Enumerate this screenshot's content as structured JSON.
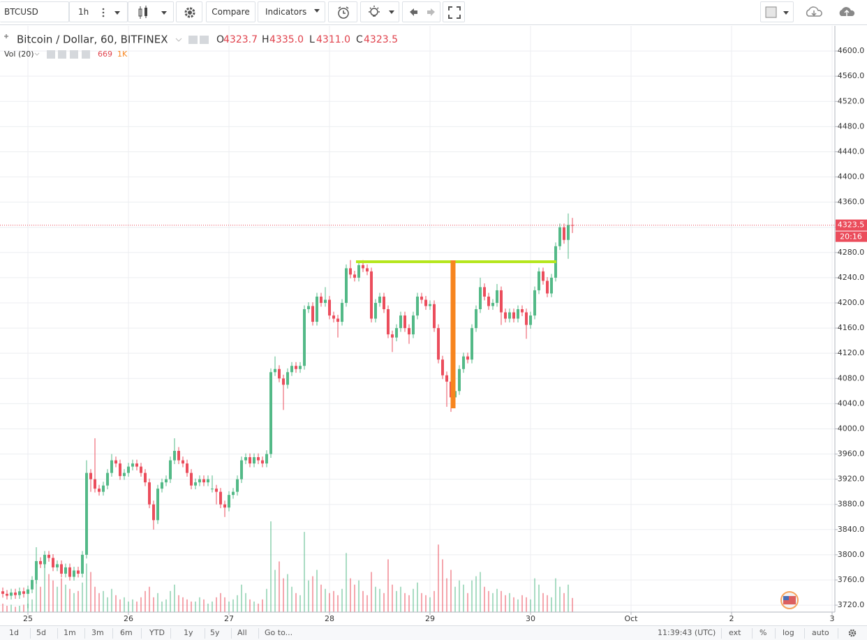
{
  "toolbar": {
    "symbol": "BTCUSD",
    "interval": "1h",
    "compare": "Compare",
    "indicators": "Indicators"
  },
  "legend": {
    "o_key": "O",
    "o": "4323.7",
    "h_key": "H",
    "h": "4335.0",
    "l_key": "L",
    "l": "4311.0",
    "c_key": "C",
    "c": "4323.5",
    "ma": "1K"
  },
  "countdown": "20:16",
  "bottom_bar": {
    "ranges": [
      "1d",
      "5d",
      "1m",
      "3m",
      "6m",
      "YTD",
      "1y",
      "5y",
      "All"
    ],
    "goto": "Go to...",
    "clock": "11:39:43 (UTC)",
    "options": [
      "ext",
      "%",
      "log",
      "auto"
    ]
  },
  "chart_data": {
    "type": "candlestick",
    "up_color": "#53b987",
    "down_color": "#eb4d5c",
    "grid": true,
    "xlim": [
      24.7222,
      33.0278
    ],
    "xticks": [
      25,
      26,
      27,
      28,
      29,
      30,
      {
        "value": 31,
        "label": "Oct"
      },
      {
        "value": 32,
        "label": "2"
      },
      {
        "value": 33,
        "label": "3"
      }
    ],
    "ylim": [
      3709,
      4640
    ],
    "yticks": [
      {
        "value": 3720,
        "label": "3720.0"
      },
      {
        "value": 3760,
        "label": "3760.0"
      },
      {
        "value": 3800,
        "label": "3800.0"
      },
      {
        "value": 3840,
        "label": "3840.0"
      },
      {
        "value": 3880,
        "label": "3880.0"
      },
      {
        "value": 3920,
        "label": "3920.0"
      },
      {
        "value": 3960,
        "label": "3960.0"
      },
      {
        "value": 4000,
        "label": "4000.0"
      },
      {
        "value": 4040,
        "label": "4040.0"
      },
      {
        "value": 4080,
        "label": "4080.0"
      },
      {
        "value": 4120,
        "label": "4120.0"
      },
      {
        "value": 4160,
        "label": "4160.0"
      },
      {
        "value": 4200,
        "label": "4200.0"
      },
      {
        "value": 4240,
        "label": "4240.0"
      },
      {
        "value": 4280,
        "label": "4280.0"
      },
      {
        "value": 4320,
        "label": "4320.0"
      },
      {
        "value": 4360,
        "label": "4360.0"
      },
      {
        "value": 4400,
        "label": "4400.0"
      },
      {
        "value": 4440,
        "label": "4440.0"
      },
      {
        "value": 4480,
        "label": "4480.0"
      },
      {
        "value": 4520,
        "label": "4520.0"
      },
      {
        "value": 4560,
        "label": "4560.0"
      },
      {
        "value": 4600,
        "label": "4600.0"
      }
    ],
    "x": [
      24.75,
      24.7917,
      24.8333,
      24.875,
      24.9167,
      24.9583,
      25,
      25.0417,
      25.0833,
      25.125,
      25.1667,
      25.2083,
      25.25,
      25.2917,
      25.3333,
      25.375,
      25.4167,
      25.4583,
      25.5,
      25.5417,
      25.5833,
      25.625,
      25.6667,
      25.7083,
      25.75,
      25.7917,
      25.8333,
      25.875,
      25.9167,
      25.9583,
      26,
      26.0417,
      26.0833,
      26.125,
      26.1667,
      26.2083,
      26.25,
      26.2917,
      26.3333,
      26.375,
      26.4167,
      26.4583,
      26.5,
      26.5417,
      26.5833,
      26.625,
      26.6667,
      26.7083,
      26.75,
      26.7917,
      26.8333,
      26.875,
      26.9167,
      26.9583,
      27,
      27.0417,
      27.0833,
      27.125,
      27.1667,
      27.2083,
      27.25,
      27.2917,
      27.3333,
      27.375,
      27.4167,
      27.4583,
      27.5,
      27.5417,
      27.5833,
      27.625,
      27.6667,
      27.7083,
      27.75,
      27.7917,
      27.8333,
      27.875,
      27.9167,
      27.9583,
      28,
      28.0417,
      28.0833,
      28.125,
      28.1667,
      28.2083,
      28.25,
      28.2917,
      28.3333,
      28.375,
      28.4167,
      28.4583,
      28.5,
      28.5417,
      28.5833,
      28.625,
      28.6667,
      28.7083,
      28.75,
      28.7917,
      28.8333,
      28.875,
      28.9167,
      28.9583,
      29,
      29.0417,
      29.0833,
      29.125,
      29.1667,
      29.2083,
      29.25,
      29.2917,
      29.3333,
      29.375,
      29.4167,
      29.4583,
      29.5,
      29.5417,
      29.5833,
      29.625,
      29.6667,
      29.7083,
      29.75,
      29.7917,
      29.8333,
      29.875,
      29.9167,
      29.9583,
      30,
      30.0417,
      30.0833,
      30.125,
      30.1667,
      30.2083,
      30.25,
      30.2917,
      30.3333,
      30.375,
      30.4167
    ],
    "series": [
      {
        "name": "Bitcoin / Dollar, 60, BITFINEX",
        "open": [
          3742,
          3738,
          3735,
          3740,
          3736,
          3742,
          3738,
          3745,
          3760,
          3790,
          3785,
          3800,
          3795,
          3780,
          3785,
          3770,
          3780,
          3765,
          3775,
          3770,
          3800,
          3930,
          3920,
          3905,
          3900,
          3910,
          3930,
          3950,
          3945,
          3925,
          3930,
          3940,
          3945,
          3940,
          3930,
          3915,
          3880,
          3855,
          3905,
          3915,
          3920,
          3950,
          3965,
          3950,
          3945,
          3930,
          3910,
          3915,
          3920,
          3915,
          3905,
          3905,
          3900,
          3880,
          3875,
          3895,
          3900,
          3920,
          3950,
          3955,
          3945,
          3955,
          3950,
          3945,
          3960,
          4090,
          4095,
          4080,
          4070,
          4090,
          4100,
          4095,
          4100,
          4190,
          4195,
          4170,
          4210,
          4200,
          4205,
          4180,
          4175,
          4170,
          4200,
          4255,
          4245,
          4240,
          4260,
          4255,
          4250,
          4175,
          4200,
          4210,
          4190,
          4150,
          4145,
          4160,
          4180,
          4160,
          4150,
          4180,
          4210,
          4205,
          4195,
          4198,
          4160,
          4110,
          4085,
          4075,
          4050,
          4060,
          4095,
          4115,
          4110,
          4160,
          4190,
          4225,
          4210,
          4195,
          4200,
          4220,
          4185,
          4175,
          4185,
          4175,
          4190,
          4185,
          4165,
          4180,
          4220,
          4250,
          4235,
          4215,
          4240,
          4290,
          4320,
          4300,
          4323.7
        ],
        "high": [
          3748,
          3744,
          3746,
          3746,
          3748,
          3748,
          3751,
          3766,
          3812,
          3796,
          3806,
          3806,
          3801,
          3791,
          3791,
          3786,
          3786,
          3781,
          3781,
          3806,
          3950,
          3936,
          3985,
          3911,
          3916,
          3936,
          3960,
          3956,
          3951,
          3936,
          3946,
          3951,
          3951,
          3946,
          3936,
          3921,
          3886,
          3911,
          3921,
          3926,
          3956,
          3985,
          3971,
          3956,
          3951,
          3936,
          3921,
          3926,
          3926,
          3926,
          3926,
          3911,
          3906,
          3886,
          3901,
          3906,
          3926,
          3956,
          3961,
          3961,
          3961,
          3961,
          3956,
          3966,
          4096,
          4115,
          4101,
          4086,
          4096,
          4106,
          4106,
          4106,
          4196,
          4201,
          4201,
          4216,
          4216,
          4225,
          4211,
          4186,
          4181,
          4206,
          4261,
          4268,
          4251,
          4266,
          4268,
          4261,
          4256,
          4206,
          4216,
          4216,
          4196,
          4156,
          4166,
          4186,
          4186,
          4166,
          4186,
          4216,
          4216,
          4211,
          4204,
          4204,
          4166,
          4116,
          4091,
          4081,
          4066,
          4101,
          4121,
          4121,
          4166,
          4196,
          4240,
          4231,
          4216,
          4206,
          4230,
          4226,
          4191,
          4191,
          4191,
          4196,
          4196,
          4191,
          4186,
          4226,
          4256,
          4256,
          4241,
          4246,
          4296,
          4326,
          4326,
          4342,
          4335
        ],
        "low": [
          3732,
          3729,
          3729,
          3730,
          3730,
          3732,
          3715,
          3739,
          3754,
          3779,
          3779,
          3789,
          3774,
          3774,
          3764,
          3764,
          3759,
          3759,
          3764,
          3764,
          3794,
          3900,
          3899,
          3894,
          3894,
          3904,
          3924,
          3939,
          3919,
          3919,
          3924,
          3934,
          3934,
          3924,
          3909,
          3874,
          3840,
          3849,
          3899,
          3909,
          3914,
          3944,
          3944,
          3939,
          3924,
          3904,
          3904,
          3909,
          3909,
          3909,
          3899,
          3880,
          3874,
          3860,
          3869,
          3889,
          3894,
          3914,
          3944,
          3939,
          3939,
          3944,
          3939,
          3939,
          3954,
          4084,
          4074,
          4030,
          4064,
          4084,
          4089,
          4089,
          4094,
          4184,
          4164,
          4164,
          4194,
          4194,
          4174,
          4169,
          4145,
          4164,
          4194,
          4239,
          4234,
          4234,
          4249,
          4244,
          4169,
          4169,
          4194,
          4184,
          4144,
          4122,
          4139,
          4154,
          4154,
          4135,
          4144,
          4174,
          4199,
          4189,
          4189,
          4154,
          4104,
          4079,
          4035,
          4027,
          4044,
          4054,
          4089,
          4104,
          4104,
          4154,
          4184,
          4204,
          4189,
          4189,
          4194,
          4165,
          4169,
          4169,
          4169,
          4169,
          4179,
          4143,
          4159,
          4174,
          4214,
          4229,
          4209,
          4209,
          4234,
          4284,
          4294,
          4270,
          4311
        ],
        "close": [
          3738,
          3735,
          3740,
          3736,
          3742,
          3738,
          3745,
          3760,
          3790,
          3785,
          3800,
          3795,
          3780,
          3785,
          3770,
          3780,
          3765,
          3775,
          3770,
          3800,
          3930,
          3920,
          3905,
          3900,
          3910,
          3930,
          3950,
          3945,
          3925,
          3930,
          3940,
          3945,
          3940,
          3930,
          3915,
          3880,
          3855,
          3905,
          3915,
          3920,
          3950,
          3965,
          3950,
          3945,
          3930,
          3910,
          3915,
          3920,
          3915,
          3920,
          3905,
          3900,
          3880,
          3875,
          3895,
          3900,
          3920,
          3950,
          3955,
          3945,
          3955,
          3950,
          3945,
          3960,
          4090,
          4095,
          4080,
          4070,
          4090,
          4100,
          4095,
          4100,
          4190,
          4195,
          4170,
          4210,
          4200,
          4205,
          4180,
          4175,
          4170,
          4200,
          4255,
          4245,
          4240,
          4260,
          4255,
          4250,
          4175,
          4200,
          4210,
          4190,
          4150,
          4145,
          4160,
          4180,
          4160,
          4150,
          4180,
          4210,
          4205,
          4195,
          4198,
          4160,
          4110,
          4085,
          4075,
          4050,
          4060,
          4095,
          4115,
          4110,
          4160,
          4190,
          4225,
          4210,
          4195,
          4200,
          4220,
          4185,
          4175,
          4185,
          4175,
          4190,
          4185,
          4165,
          4180,
          4220,
          4250,
          4235,
          4215,
          4240,
          4290,
          4320,
          4300,
          4323.7,
          4323.5
        ]
      }
    ],
    "volume": {
      "name": "Vol (20)",
      "values": [
        400,
        300,
        350,
        250,
        300,
        350,
        400,
        600,
        2200,
        1200,
        2400,
        1800,
        1500,
        1200,
        1600,
        1300,
        1100,
        900,
        1000,
        1400,
        2300,
        1900,
        1200,
        900,
        1000,
        700,
        1100,
        800,
        600,
        700,
        500,
        600,
        500,
        700,
        1000,
        1200,
        700,
        900,
        500,
        600,
        1000,
        1300,
        800,
        700,
        600,
        500,
        500,
        700,
        600,
        400,
        500,
        700,
        900,
        700,
        500,
        600,
        800,
        1300,
        900,
        600,
        500,
        400,
        600,
        1100,
        4300,
        2000,
        2400,
        1600,
        1800,
        1200,
        900,
        800,
        3800,
        1500,
        1700,
        2000,
        1300,
        1100,
        900,
        1000,
        800,
        1100,
        2800,
        1600,
        1300,
        1500,
        1000,
        800,
        1900,
        1200,
        1100,
        900,
        2500,
        1300,
        1000,
        1200,
        900,
        800,
        1100,
        1400,
        900,
        800,
        700,
        1000,
        3200,
        2500,
        1600,
        2000,
        1200,
        1500,
        1300,
        900,
        1500,
        1700,
        1900,
        1200,
        1000,
        900,
        1100,
        1000,
        800,
        900,
        700,
        600,
        800,
        700,
        600,
        1600,
        1300,
        900,
        800,
        700,
        1600,
        1200,
        900,
        1300,
        669
      ]
    }
  }
}
